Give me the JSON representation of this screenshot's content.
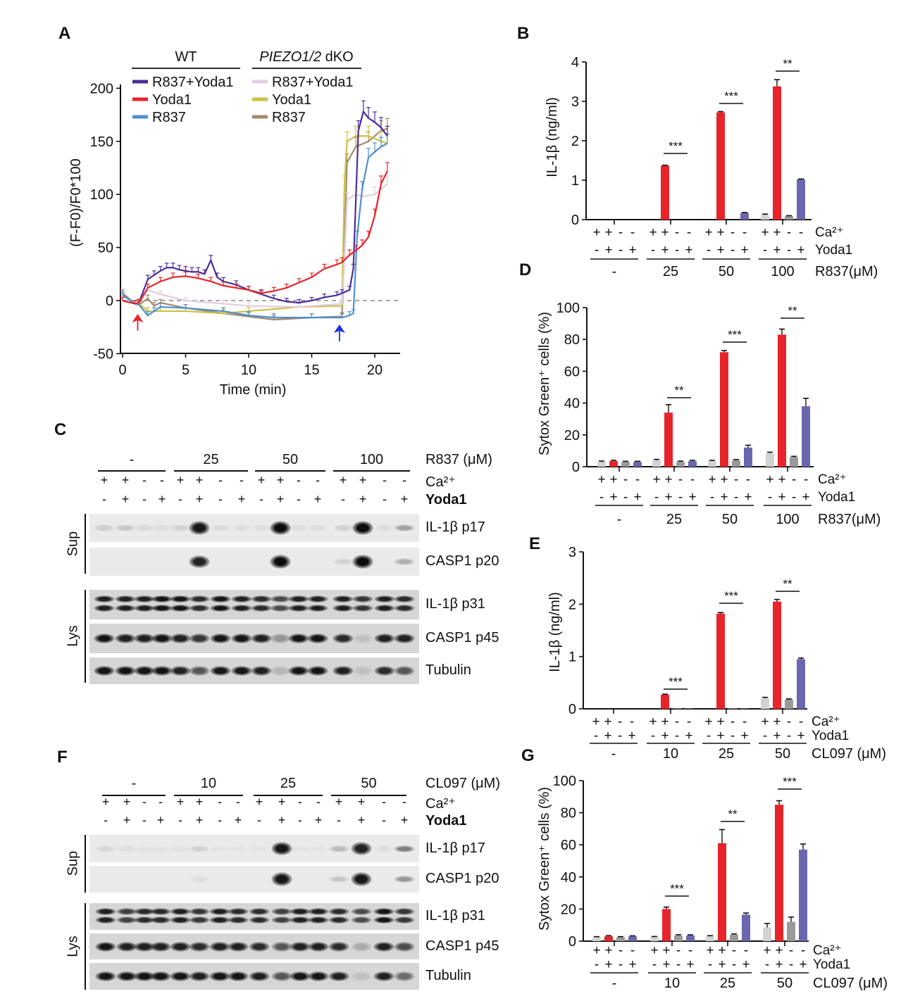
{
  "panel_letters": {
    "A": "A",
    "B": "B",
    "C": "C",
    "D": "D",
    "E": "E",
    "F": "F",
    "G": "G"
  },
  "chart_data": [
    {
      "panel": "A",
      "type": "line",
      "xlabel": "Time (min)",
      "ylabel": "(F-F0)/F0*100",
      "xlim": [
        0,
        22
      ],
      "ylim": [
        -50,
        200
      ],
      "xticks": [
        0,
        5,
        10,
        15,
        20
      ],
      "yticks": [
        -50,
        0,
        50,
        100,
        150,
        200
      ],
      "reference_line": {
        "y": 0,
        "style": "dashed"
      },
      "legend_groups": [
        {
          "title": "WT",
          "italic": false
        },
        {
          "title_italic": "PIEZO1/2",
          "title_rest": " dKO"
        }
      ],
      "arrows": [
        {
          "time": 1.2,
          "color": "#e8242b"
        },
        {
          "time": 17.2,
          "color": "#1a2fe0"
        }
      ],
      "series": [
        {
          "name": "R837+Yoda1",
          "group": "WT",
          "color": "#4b2d9b",
          "x": [
            0,
            1,
            1.3,
            2,
            2.5,
            3,
            3.5,
            4,
            4.5,
            5,
            5.5,
            6,
            6.5,
            7,
            7.5,
            8,
            9,
            10,
            11,
            12,
            13,
            14,
            15,
            16,
            17,
            17.4,
            18,
            18.3,
            18.7,
            19.1,
            19.5,
            20,
            20.5,
            21
          ],
          "y": [
            0,
            -3,
            -2,
            20,
            24,
            28,
            31,
            31,
            29,
            28,
            27,
            27,
            25,
            38,
            22,
            18,
            15,
            10,
            6,
            2,
            -1,
            -2,
            0,
            3,
            5,
            7,
            10,
            30,
            160,
            178,
            172,
            168,
            163,
            155
          ]
        },
        {
          "name": "Yoda1",
          "group": "WT",
          "color": "#e8242b",
          "x": [
            0,
            1,
            1.3,
            2,
            3,
            4,
            5,
            6,
            7,
            8,
            9,
            10,
            11,
            12,
            13,
            14,
            15,
            16,
            17,
            17.4,
            18,
            18.5,
            19,
            19.5,
            20,
            20.5,
            21
          ],
          "y": [
            0,
            -3,
            -2,
            12,
            18,
            22,
            23,
            21,
            18,
            14,
            12,
            10,
            7,
            9,
            12,
            17,
            22,
            30,
            34,
            36,
            43,
            47,
            52,
            60,
            80,
            110,
            122
          ]
        },
        {
          "name": "R837",
          "group": "WT",
          "color": "#4f8fd0",
          "x": [
            0,
            1,
            1.3,
            2,
            2.5,
            3,
            5,
            8,
            10,
            12,
            15,
            17.4,
            18,
            18.3,
            18.6,
            19,
            19.5,
            20,
            20.5,
            21
          ],
          "y": [
            5,
            -3,
            -4,
            -14,
            -10,
            -6,
            -7,
            -10,
            -14,
            -16,
            -16,
            -16,
            -14,
            -12,
            60,
            105,
            135,
            140,
            145,
            148
          ]
        },
        {
          "name": "R837+Yoda1",
          "group": "PIEZO1/2 dKO",
          "color": "#e2cde0",
          "x": [
            0,
            1,
            1.3,
            2,
            3,
            5,
            8,
            10,
            14,
            17.4,
            17.6,
            17.8,
            18.5,
            19,
            20,
            20.5,
            21
          ],
          "y": [
            5,
            -3,
            -2,
            10,
            6,
            0,
            -3,
            -5,
            -6,
            -3,
            40,
            95,
            100,
            98,
            100,
            105,
            110
          ]
        },
        {
          "name": "Yoda1",
          "group": "PIEZO1/2 dKO",
          "color": "#cbc043",
          "x": [
            0,
            1,
            1.3,
            2,
            3,
            5,
            8,
            10,
            14,
            17.4,
            17.6,
            17.8,
            18.5,
            19.5,
            20.5,
            21
          ],
          "y": [
            5,
            -3,
            -3,
            -10,
            -10,
            -10,
            -12,
            -10,
            -6,
            -5,
            110,
            150,
            155,
            155,
            150,
            148
          ]
        },
        {
          "name": "R837",
          "group": "PIEZO1/2 dKO",
          "color": "#a5896a",
          "x": [
            0,
            1,
            1.3,
            2,
            2.5,
            3,
            5,
            8,
            10,
            12,
            15,
            17.4,
            17.6,
            17.8,
            18.5,
            19.5,
            20.5,
            21
          ],
          "y": [
            7,
            -3,
            -4,
            2,
            -5,
            -2,
            -7,
            -12,
            -15,
            -18,
            -16,
            -15,
            50,
            130,
            145,
            150,
            160,
            162
          ]
        }
      ]
    },
    {
      "panel": "B",
      "type": "bar",
      "ylabel": "IL-1β (ng/ml)",
      "ylim": [
        0,
        4
      ],
      "yticks": [
        0,
        1,
        2,
        3,
        4
      ],
      "groups": [
        "-",
        "25",
        "50",
        "100"
      ],
      "group_label": "R837(μM)",
      "row_labels": {
        "ca": "Ca²⁺",
        "yoda": "Yoda1"
      },
      "ca": [
        "+",
        "+",
        "-",
        "-"
      ],
      "yoda": [
        "-",
        "+",
        "-",
        "+"
      ],
      "series": [
        {
          "color": "#d3d3d3",
          "values": [
            0,
            0,
            0,
            0.12
          ],
          "errors": [
            0,
            0,
            0,
            0.02
          ]
        },
        {
          "color": "#e8242b",
          "values": [
            0,
            1.37,
            2.72,
            3.38
          ],
          "errors": [
            0,
            0.01,
            0.02,
            0.17
          ]
        },
        {
          "color": "#9a9a9a",
          "values": [
            0,
            0,
            0,
            0.09
          ],
          "errors": [
            0,
            0,
            0,
            0.01
          ]
        },
        {
          "color": "#6b67ae",
          "values": [
            0,
            0,
            0.17,
            1.02
          ],
          "errors": [
            0,
            0,
            0.01,
            0.01
          ]
        }
      ],
      "significance": [
        {
          "group": "25",
          "text": "***"
        },
        {
          "group": "50",
          "text": "***"
        },
        {
          "group": "100",
          "text": "**"
        }
      ]
    },
    {
      "panel": "D",
      "type": "bar",
      "ylabel": "Sytox Green⁺ cells (%)",
      "ylim": [
        0,
        100
      ],
      "yticks": [
        0,
        20,
        40,
        60,
        80,
        100
      ],
      "groups": [
        "-",
        "25",
        "50",
        "100"
      ],
      "group_label": "R837(μM)",
      "row_labels": {
        "ca": "Ca²⁺",
        "yoda": "Yoda1"
      },
      "ca": [
        "+",
        "+",
        "-",
        "-"
      ],
      "yoda": [
        "-",
        "+",
        "-",
        "+"
      ],
      "series": [
        {
          "color": "#d3d3d3",
          "values": [
            3,
            4,
            3.5,
            8.5
          ],
          "errors": [
            0.5,
            0.6,
            0.5,
            0.6
          ]
        },
        {
          "color": "#e8242b",
          "values": [
            3.5,
            34,
            72,
            83
          ],
          "errors": [
            0.5,
            5,
            1,
            3.5
          ]
        },
        {
          "color": "#9a9a9a",
          "values": [
            3,
            3,
            4,
            6
          ],
          "errors": [
            0.4,
            0.5,
            0.5,
            0.5
          ]
        },
        {
          "color": "#6b67ae",
          "values": [
            3,
            3.5,
            12,
            38
          ],
          "errors": [
            0.4,
            0.5,
            1.5,
            5
          ]
        }
      ],
      "significance": [
        {
          "group": "25",
          "text": "**"
        },
        {
          "group": "50",
          "text": "***"
        },
        {
          "group": "100",
          "text": "**"
        }
      ]
    },
    {
      "panel": "E",
      "type": "bar",
      "ylabel": "IL-1β (ng/ml)",
      "ylim": [
        0,
        3
      ],
      "yticks": [
        0,
        1,
        2,
        3
      ],
      "groups": [
        "-",
        "10",
        "25",
        "50"
      ],
      "group_label": "CL097 (μM)",
      "row_labels": {
        "ca": "Ca²⁺",
        "yoda": "Yoda1"
      },
      "ca": [
        "+",
        "+",
        "-",
        "-"
      ],
      "yoda": [
        "-",
        "+",
        "-",
        "+"
      ],
      "series": [
        {
          "color": "#d3d3d3",
          "values": [
            0,
            0,
            0,
            0.2
          ],
          "errors": [
            0,
            0,
            0,
            0.02
          ]
        },
        {
          "color": "#e8242b",
          "values": [
            0,
            0.27,
            1.82,
            2.05
          ],
          "errors": [
            0,
            0.01,
            0.02,
            0.04
          ]
        },
        {
          "color": "#9a9a9a",
          "values": [
            0,
            0.01,
            0.01,
            0.18
          ],
          "errors": [
            0,
            0,
            0,
            0.01
          ]
        },
        {
          "color": "#6b67ae",
          "values": [
            0,
            0.01,
            0.01,
            0.95
          ],
          "errors": [
            0,
            0,
            0,
            0.02
          ]
        }
      ],
      "significance": [
        {
          "group": "10",
          "text": "***"
        },
        {
          "group": "25",
          "text": "***"
        },
        {
          "group": "50",
          "text": "**"
        }
      ]
    },
    {
      "panel": "G",
      "type": "bar",
      "ylabel": "Sytox Green⁺ cells (%)",
      "ylim": [
        0,
        100
      ],
      "yticks": [
        0,
        20,
        40,
        60,
        80,
        100
      ],
      "groups": [
        "-",
        "10",
        "25",
        "50"
      ],
      "group_label": "CL097 (μM)",
      "row_labels": {
        "ca": "Ca²⁺",
        "yoda": "Yoda1"
      },
      "ca": [
        "+",
        "+",
        "-",
        "-"
      ],
      "yoda": [
        "-",
        "+",
        "-",
        "+"
      ],
      "series": [
        {
          "color": "#d3d3d3",
          "values": [
            2.5,
            2.5,
            3,
            8.5
          ],
          "errors": [
            0.3,
            0.4,
            0.4,
            2.5
          ]
        },
        {
          "color": "#e8242b",
          "values": [
            3,
            20,
            61,
            85
          ],
          "errors": [
            0.4,
            1.2,
            8.5,
            2.5
          ]
        },
        {
          "color": "#9a9a9a",
          "values": [
            2.5,
            3.5,
            4,
            12
          ],
          "errors": [
            0.3,
            0.5,
            0.5,
            3
          ]
        },
        {
          "color": "#6b67ae",
          "values": [
            3,
            3.5,
            16.5,
            57
          ],
          "errors": [
            0.3,
            0.4,
            1,
            3.5
          ]
        }
      ],
      "significance": [
        {
          "group": "10",
          "text": "***"
        },
        {
          "group": "25",
          "text": "**"
        },
        {
          "group": "50",
          "text": "***"
        }
      ]
    }
  ],
  "blots": [
    {
      "panel": "C",
      "doses": [
        "-",
        "25",
        "50",
        "100"
      ],
      "dose_label": "R837 (μM)",
      "ca_label": "Ca²⁺",
      "yoda_label": "Yoda1",
      "ca": [
        "+",
        "+",
        "-",
        "-"
      ],
      "yoda": [
        "-",
        "+",
        "-",
        "+"
      ],
      "sections": {
        "sup": "Sup",
        "lys": "Lys"
      },
      "rows": [
        {
          "label": "IL-1β p17",
          "section": "sup",
          "intensity": [
            0.12,
            0.15,
            0.08,
            0.05,
            0.1,
            0.9,
            0.06,
            0.05,
            0.05,
            0.95,
            0.05,
            0.05,
            0.1,
            0.95,
            0.05,
            0.3
          ]
        },
        {
          "label": "CASP1 p20",
          "section": "sup",
          "intensity": [
            0,
            0,
            0,
            0,
            0,
            0.85,
            0,
            0,
            0,
            0.95,
            0,
            0,
            0.1,
            0.95,
            0,
            0.25
          ]
        },
        {
          "label": "IL-1β p31",
          "section": "lys",
          "double": true,
          "intensity": [
            0.85,
            0.85,
            0.85,
            0.9,
            0.9,
            0.8,
            0.9,
            0.85,
            0.8,
            0.65,
            0.85,
            0.85,
            0.85,
            0.75,
            0.85,
            0.8
          ]
        },
        {
          "label": "CASP1 p45",
          "section": "lys",
          "intensity": [
            0.9,
            0.85,
            0.85,
            0.9,
            0.85,
            0.75,
            0.9,
            0.9,
            0.85,
            0.3,
            0.9,
            0.9,
            0.8,
            0.1,
            0.85,
            0.85
          ]
        },
        {
          "label": "Tubulin",
          "section": "lys",
          "intensity": [
            0.9,
            0.9,
            0.9,
            0.9,
            0.85,
            0.6,
            0.9,
            0.9,
            0.85,
            0.15,
            0.9,
            0.9,
            0.85,
            0.1,
            0.8,
            0.6
          ]
        }
      ]
    },
    {
      "panel": "F",
      "doses": [
        "-",
        "10",
        "25",
        "50"
      ],
      "dose_label": "CL097 (μM)",
      "ca_label": "Ca²⁺",
      "yoda_label": "Yoda1",
      "ca": [
        "+",
        "+",
        "-",
        "-"
      ],
      "yoda": [
        "-",
        "+",
        "-",
        "+"
      ],
      "sections": {
        "sup": "Sup",
        "lys": "Lys"
      },
      "rows": [
        {
          "label": "IL-1β p17",
          "section": "sup",
          "intensity": [
            0.08,
            0.05,
            0.03,
            0.03,
            0.04,
            0.1,
            0.03,
            0.03,
            0.03,
            0.9,
            0.03,
            0.03,
            0.2,
            0.85,
            0.05,
            0.45
          ]
        },
        {
          "label": "CASP1 p20",
          "section": "sup",
          "intensity": [
            0,
            0,
            0,
            0,
            0,
            0.05,
            0,
            0,
            0,
            0.9,
            0,
            0,
            0.15,
            0.9,
            0,
            0.35
          ]
        },
        {
          "label": "IL-1β p31",
          "section": "lys",
          "double": true,
          "intensity": [
            0.85,
            0.7,
            0.8,
            0.8,
            0.85,
            0.75,
            0.85,
            0.8,
            0.8,
            0.7,
            0.85,
            0.85,
            0.8,
            0.65,
            0.9,
            0.75
          ]
        },
        {
          "label": "CASP1 p45",
          "section": "lys",
          "intensity": [
            0.9,
            0.85,
            0.85,
            0.85,
            0.85,
            0.8,
            0.85,
            0.85,
            0.8,
            0.6,
            0.85,
            0.85,
            0.8,
            0.2,
            0.85,
            0.65
          ]
        },
        {
          "label": "Tubulin",
          "section": "lys",
          "intensity": [
            0.9,
            0.9,
            0.9,
            0.9,
            0.9,
            0.85,
            0.9,
            0.9,
            0.85,
            0.6,
            0.9,
            0.9,
            0.85,
            0.1,
            0.85,
            0.5
          ]
        }
      ]
    }
  ]
}
